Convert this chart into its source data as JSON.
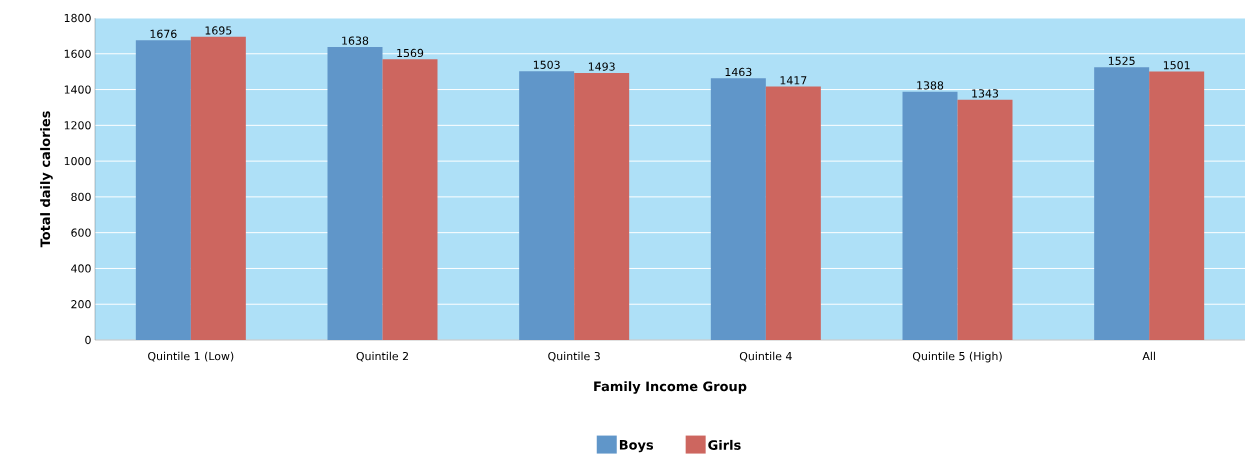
{
  "chart_data": {
    "type": "bar",
    "xlabel": "Family Income Group",
    "ylabel": "Total daily calories",
    "categories": [
      "Quintile 1 (Low)",
      "Quintile 2",
      "Quintile 3",
      "Quintile 4",
      "Quintile 5 (High)",
      "All"
    ],
    "series": [
      {
        "name": "Boys",
        "color": "#6096c9",
        "values": [
          1676,
          1638,
          1503,
          1463,
          1388,
          1525
        ]
      },
      {
        "name": "Girls",
        "color": "#cd665f",
        "values": [
          1695,
          1569,
          1493,
          1417,
          1343,
          1501
        ]
      }
    ],
    "ylim": [
      0,
      1800
    ],
    "yticks": [
      0,
      200,
      400,
      600,
      800,
      1000,
      1200,
      1400,
      1600,
      1800
    ],
    "grid": "y",
    "legend": "bottom",
    "data_labels": true
  }
}
